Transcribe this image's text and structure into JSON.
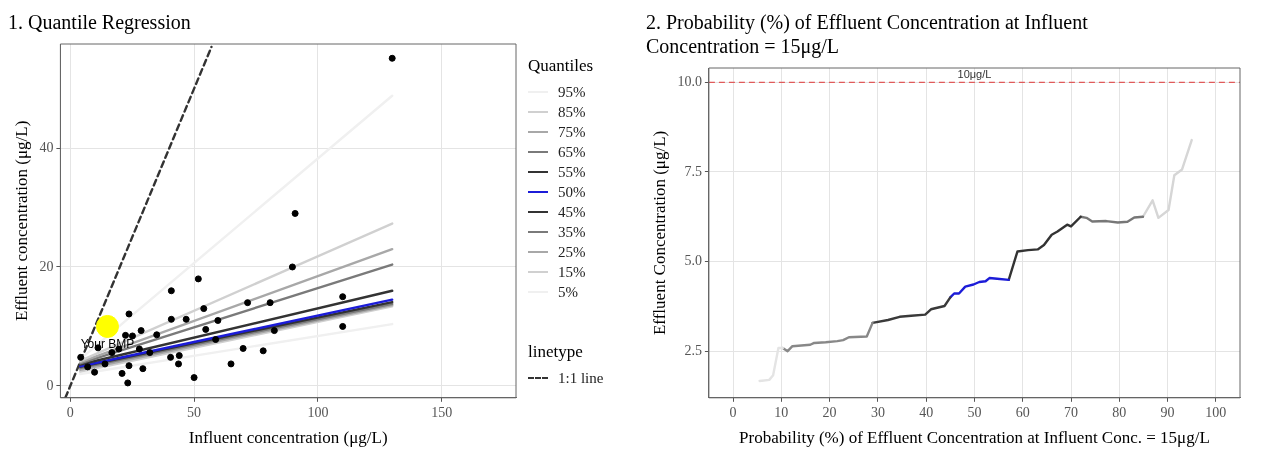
{
  "chart_data": [
    {
      "type": "scatter",
      "title": "1. Quantile Regression",
      "xlabel": "Influent concentration (μg/L)",
      "ylabel": "Effluent concentration (μg/L)",
      "legend_title": "Quantiles",
      "legend": "right",
      "grid": true,
      "marker": "none",
      "xlim": [
        -4,
        180
      ],
      "xticks": [
        0,
        50,
        100,
        150
      ],
      "ylim": [
        -2,
        57.5
      ],
      "yticks": [
        0,
        20,
        40
      ],
      "annotations": [
        {
          "text": "Your BMP",
          "x": 15,
          "y": 10
        },
        "linetype"
      ],
      "series": [
        {
          "name": "95%",
          "type": "line",
          "color": "#f0f0f0",
          "x": [
            4,
            130
          ],
          "values": [
            4.5,
            48.8
          ]
        },
        {
          "name": "85%",
          "type": "line",
          "color": "#d0d0d0",
          "x": [
            4,
            130
          ],
          "values": [
            4.2,
            27.3
          ]
        },
        {
          "name": "75%",
          "type": "line",
          "color": "#a8a8a8",
          "x": [
            4,
            130
          ],
          "values": [
            4.0,
            23.0
          ]
        },
        {
          "name": "65%",
          "type": "line",
          "color": "#7a7a7a",
          "x": [
            4,
            130
          ],
          "values": [
            3.8,
            20.4
          ]
        },
        {
          "name": "55%",
          "type": "line",
          "color": "#333333",
          "x": [
            4,
            130
          ],
          "values": [
            3.6,
            16.0
          ]
        },
        {
          "name": "50%",
          "type": "line",
          "color": "#1c1cd8",
          "x": [
            4,
            130
          ],
          "values": [
            3.3,
            14.5
          ]
        },
        {
          "name": "45%",
          "type": "line",
          "color": "#333333",
          "x": [
            4,
            130
          ],
          "values": [
            3.2,
            14.1
          ]
        },
        {
          "name": "35%",
          "type": "line",
          "color": "#7a7a7a",
          "x": [
            4,
            130
          ],
          "values": [
            3.0,
            13.8
          ]
        },
        {
          "name": "25%",
          "type": "line",
          "color": "#a8a8a8",
          "x": [
            4,
            130
          ],
          "values": [
            2.7,
            13.6
          ]
        },
        {
          "name": "15%",
          "type": "line",
          "color": "#d0d0d0",
          "x": [
            4,
            130
          ],
          "values": [
            2.4,
            13.4
          ]
        },
        {
          "name": "5%",
          "type": "line",
          "color": "#f0f0f0",
          "x": [
            4,
            130
          ],
          "values": [
            2.0,
            10.4
          ]
        },
        {
          "name": "1:1 line",
          "type": "line",
          "color": "#333333",
          "line_style": "dashed",
          "x": [
            -2,
            57
          ],
          "values": [
            -2,
            57
          ]
        },
        {
          "type": "scatter",
          "color": "#000000",
          "marker": "circle",
          "x": [
            130,
            90.8,
            51.7,
            40.8,
            110,
            71.6,
            80.7,
            89.7,
            53.9,
            23.7,
            110,
            59.6,
            40.8,
            46.8,
            54.7,
            28.6,
            34.9,
            22.3,
            25.1,
            11.2,
            64.9,
            50,
            23.2,
            69.8,
            77.9,
            82.4,
            40.5,
            44,
            43.7,
            29.3,
            20.9,
            9.8,
            4.2,
            16.8,
            32.1,
            27.9,
            19.6,
            58.7,
            7,
            14,
            23.7
          ],
          "values": [
            55.1,
            29.0,
            18.0,
            16.0,
            15.0,
            14.0,
            14.0,
            20.0,
            13.0,
            12.1,
            10.0,
            11.0,
            11.2,
            11.2,
            9.5,
            9.3,
            8.6,
            8.5,
            8.4,
            6.4,
            3.7,
            1.4,
            0.5,
            6.3,
            5.9,
            9.3,
            4.8,
            5.1,
            3.7,
            2.9,
            2.1,
            2.3,
            4.8,
            5.6,
            5.6,
            6.2,
            6.2,
            7.8,
            3.2,
            3.7,
            3.4
          ]
        },
        {
          "type": "bubble",
          "color": "#ffff00",
          "marker": "circle",
          "x": [
            15
          ],
          "values": [
            10
          ],
          "sizes": [
            1
          ]
        }
      ]
    },
    {
      "type": "line",
      "title": "2. Probability (%) of Effluent Concentration at Influent Concentration = 15μg/L",
      "xlabel": "Probability (%) of Effluent Concentration at Influent Conc. = 15μg/L",
      "ylabel": "Effluent Concentration (μg/L)",
      "grid": true,
      "marker": "none",
      "xlim": [
        -5,
        105
      ],
      "xticks": [
        0,
        10,
        20,
        30,
        40,
        50,
        60,
        70,
        80,
        90,
        100
      ],
      "ylim": [
        1.2,
        10.4
      ],
      "yticks": [
        2.5,
        {
          "value": 5,
          "label": "5.0"
        },
        7.5,
        {
          "value": 10,
          "label": "10.0"
        }
      ],
      "ref_lines": [
        {
          "axis": "y",
          "value": 10,
          "label": "10μg/L",
          "color": "#e05a5a",
          "line_style": "dashed"
        }
      ],
      "series": [
        {
          "color": "#e4e4e4",
          "x": [
            5.5,
            7.5,
            8.3,
            9.4,
            10.3
          ],
          "values": [
            1.67,
            1.7,
            1.83,
            2.59,
            2.59
          ]
        },
        {
          "color": "#888888",
          "x": [
            10.3,
            11.3,
            12.3,
            16,
            16.8,
            19.2,
            21.6,
            22.8,
            24,
            27.7,
            28.9
          ],
          "values": [
            2.59,
            2.5,
            2.64,
            2.68,
            2.73,
            2.75,
            2.78,
            2.81,
            2.89,
            2.91,
            3.29
          ]
        },
        {
          "color": "#3a3a3a",
          "x": [
            28.9,
            32.1,
            34.5,
            36.9,
            39.8,
            41,
            43.8,
            45
          ],
          "values": [
            3.29,
            3.37,
            3.46,
            3.49,
            3.52,
            3.67,
            3.76,
            4.0
          ]
        },
        {
          "color": "#1c1cd8",
          "x": [
            45,
            45.8,
            46.8,
            48.1,
            49.8,
            51,
            52.3,
            53.1,
            54.7,
            57.1
          ],
          "values": [
            4.0,
            4.11,
            4.11,
            4.3,
            4.36,
            4.43,
            4.45,
            4.54,
            4.52,
            4.49
          ]
        },
        {
          "color": "#333333",
          "x": [
            57.1,
            58.9,
            61.1,
            63.1,
            64.4,
            66,
            67.2,
            69.2,
            70,
            72
          ],
          "values": [
            4.49,
            5.28,
            5.32,
            5.34,
            5.46,
            5.75,
            5.84,
            6.03,
            5.98,
            6.25
          ]
        },
        {
          "color": "#777777",
          "x": [
            72,
            73.2,
            74.4,
            77.3,
            79.7,
            81.7,
            83.1,
            84.9
          ],
          "values": [
            6.25,
            6.22,
            6.12,
            6.13,
            6.09,
            6.11,
            6.23,
            6.25
          ]
        },
        {
          "color": "#d6d6d6",
          "x": [
            84.9,
            86.9,
            88.1,
            90.2,
            91.4,
            93,
            95
          ],
          "values": [
            6.25,
            6.71,
            6.22,
            6.44,
            7.41,
            7.57,
            8.39
          ]
        }
      ]
    }
  ]
}
